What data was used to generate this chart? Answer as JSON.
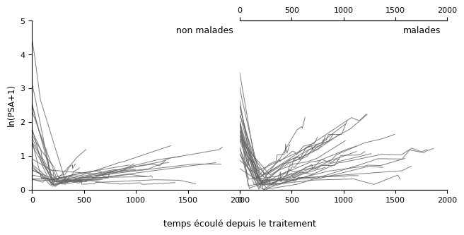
{
  "title_left": "non malades",
  "title_right": "malades",
  "ylabel": "ln(PSA+1)",
  "xlabel": "temps écoulé depuis le traitement",
  "xlim_left": [
    0,
    2000
  ],
  "xlim_right": [
    0,
    2000
  ],
  "ylim": [
    0,
    5
  ],
  "yticks": [
    0,
    1,
    2,
    3,
    4,
    5
  ],
  "xticks_bottom": [
    0,
    500,
    1000,
    1500,
    2000
  ],
  "xticks_top": [
    0,
    500,
    1000,
    1500,
    2000
  ],
  "line_color": "#666666",
  "line_alpha": 0.85,
  "line_width": 0.7,
  "bg_color": "#ffffff",
  "seed": 7,
  "non_malades_n": 22,
  "malades_n": 27
}
